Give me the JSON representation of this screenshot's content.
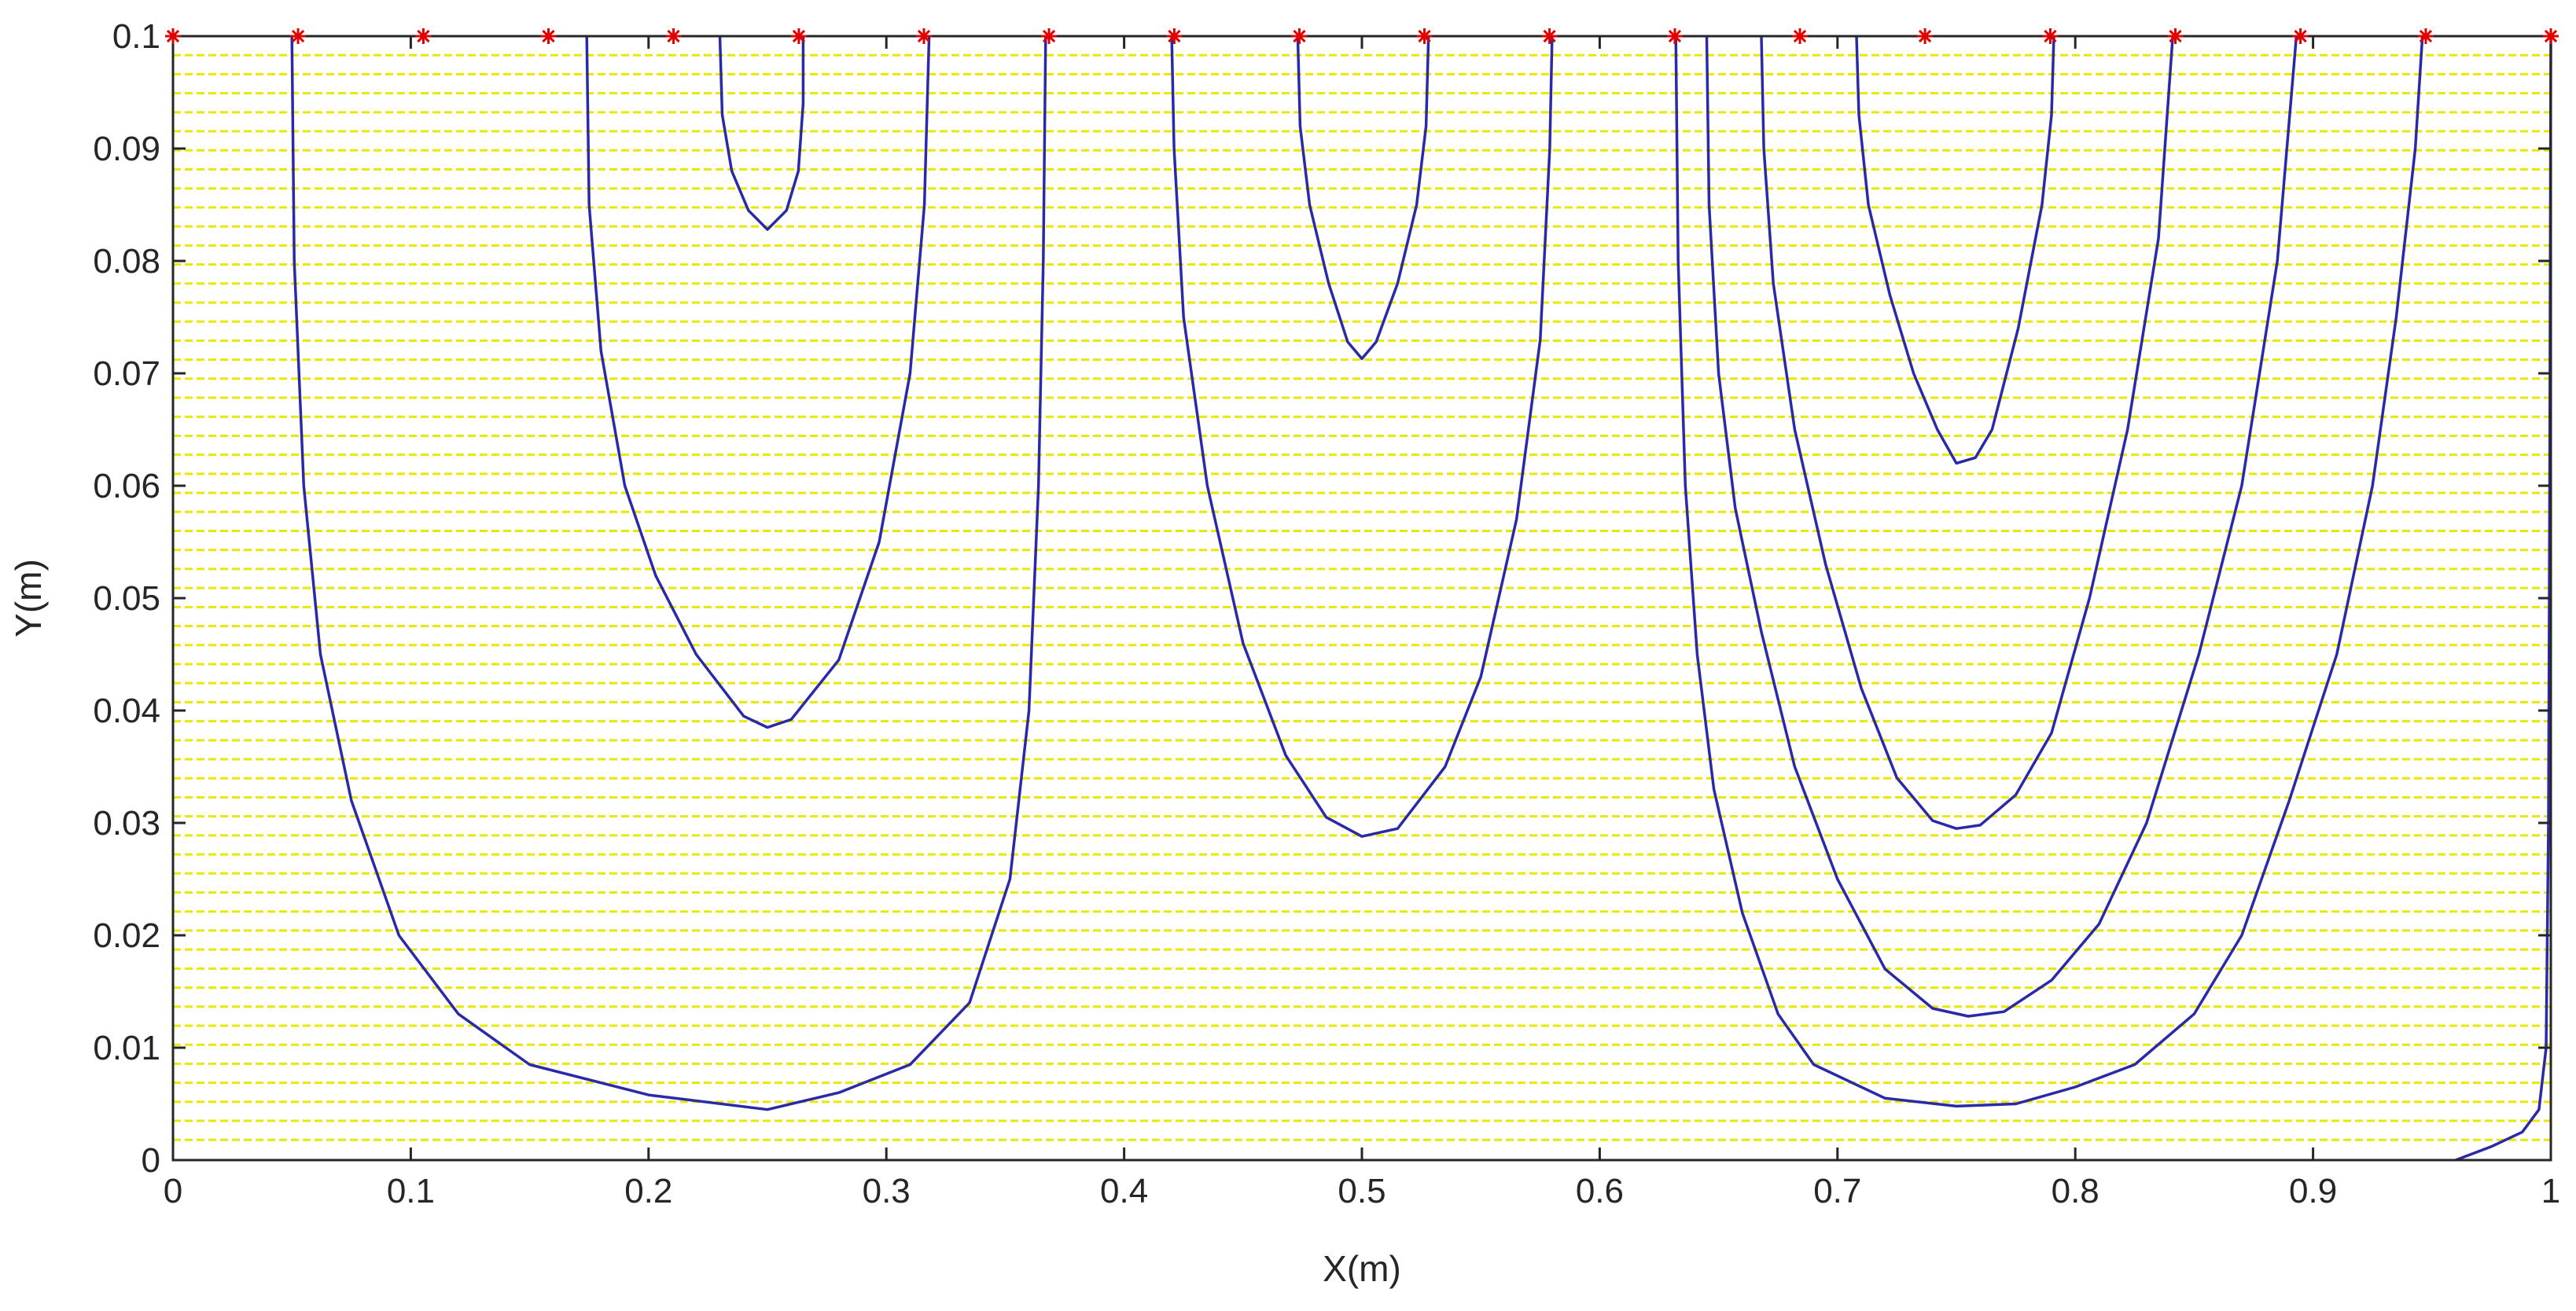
{
  "chart_data": {
    "type": "line",
    "xlabel": "X(m)",
    "ylabel": "Y(m)",
    "xlim": [
      0,
      1
    ],
    "ylim": [
      0,
      0.1
    ],
    "x_ticks": [
      0,
      0.1,
      0.2,
      0.3,
      0.4,
      0.5,
      0.6,
      0.7,
      0.8,
      0.9,
      1
    ],
    "x_tick_labels": [
      "0",
      "0.1",
      "0.2",
      "0.3",
      "0.4",
      "0.5",
      "0.6",
      "0.7",
      "0.8",
      "0.9",
      "1"
    ],
    "y_ticks": [
      0,
      0.01,
      0.02,
      0.03,
      0.04,
      0.05,
      0.06,
      0.07,
      0.08,
      0.09,
      0.1
    ],
    "y_tick_labels": [
      "0",
      "0.01",
      "0.02",
      "0.03",
      "0.04",
      "0.05",
      "0.06",
      "0.07",
      "0.08",
      "0.09",
      "0.1"
    ],
    "grid": false,
    "colors": {
      "curves": "#2a2aa8",
      "dashed_lines": "#e8e800",
      "markers": "#e00000",
      "axes": "#262626"
    },
    "horizontal_dashed_lines": {
      "y_start": 0.0018,
      "y_end": 0.1,
      "count": 59
    },
    "markers": {
      "y": 0.1,
      "symbol": "*",
      "x": [
        0,
        0.0526,
        0.1053,
        0.1579,
        0.2105,
        0.2632,
        0.3158,
        0.3684,
        0.4211,
        0.4737,
        0.5263,
        0.5789,
        0.6316,
        0.6842,
        0.7368,
        0.7895,
        0.8421,
        0.8947,
        0.9474,
        1.0
      ]
    },
    "curves": [
      {
        "points": [
          [
            0.05,
            0.1
          ],
          [
            0.051,
            0.08
          ],
          [
            0.055,
            0.06
          ],
          [
            0.062,
            0.045
          ],
          [
            0.075,
            0.032
          ],
          [
            0.095,
            0.02
          ],
          [
            0.12,
            0.013
          ],
          [
            0.15,
            0.0085
          ],
          [
            0.2,
            0.0058
          ],
          [
            0.25,
            0.0045
          ],
          [
            0.28,
            0.006
          ],
          [
            0.31,
            0.0085
          ],
          [
            0.335,
            0.014
          ],
          [
            0.352,
            0.025
          ],
          [
            0.36,
            0.04
          ],
          [
            0.364,
            0.06
          ],
          [
            0.366,
            0.08
          ],
          [
            0.367,
            0.1
          ]
        ]
      },
      {
        "points": [
          [
            0.174,
            0.1
          ],
          [
            0.175,
            0.085
          ],
          [
            0.18,
            0.072
          ],
          [
            0.19,
            0.06
          ],
          [
            0.203,
            0.052
          ],
          [
            0.22,
            0.045
          ],
          [
            0.24,
            0.0395
          ],
          [
            0.25,
            0.0385
          ],
          [
            0.26,
            0.0392
          ],
          [
            0.28,
            0.0445
          ],
          [
            0.297,
            0.055
          ],
          [
            0.31,
            0.07
          ],
          [
            0.316,
            0.085
          ],
          [
            0.318,
            0.1
          ]
        ]
      },
      {
        "points": [
          [
            0.23,
            0.1
          ],
          [
            0.231,
            0.093
          ],
          [
            0.235,
            0.088
          ],
          [
            0.242,
            0.0845
          ],
          [
            0.25,
            0.0828
          ],
          [
            0.258,
            0.0845
          ],
          [
            0.263,
            0.088
          ],
          [
            0.265,
            0.094
          ],
          [
            0.265,
            0.1
          ]
        ]
      },
      {
        "points": [
          [
            0.42,
            0.1
          ],
          [
            0.421,
            0.09
          ],
          [
            0.425,
            0.075
          ],
          [
            0.435,
            0.06
          ],
          [
            0.45,
            0.046
          ],
          [
            0.468,
            0.036
          ],
          [
            0.485,
            0.0305
          ],
          [
            0.5,
            0.0288
          ],
          [
            0.515,
            0.0295
          ],
          [
            0.535,
            0.035
          ],
          [
            0.55,
            0.043
          ],
          [
            0.565,
            0.057
          ],
          [
            0.575,
            0.073
          ],
          [
            0.579,
            0.09
          ],
          [
            0.58,
            0.1
          ]
        ]
      },
      {
        "points": [
          [
            0.473,
            0.1
          ],
          [
            0.474,
            0.092
          ],
          [
            0.478,
            0.085
          ],
          [
            0.486,
            0.078
          ],
          [
            0.494,
            0.0728
          ],
          [
            0.5,
            0.0713
          ],
          [
            0.506,
            0.0728
          ],
          [
            0.515,
            0.078
          ],
          [
            0.523,
            0.085
          ],
          [
            0.527,
            0.092
          ],
          [
            0.528,
            0.1
          ]
        ]
      },
      {
        "points": [
          [
            0.632,
            0.1
          ],
          [
            0.633,
            0.08
          ],
          [
            0.636,
            0.06
          ],
          [
            0.641,
            0.045
          ],
          [
            0.648,
            0.033
          ],
          [
            0.66,
            0.022
          ],
          [
            0.675,
            0.013
          ],
          [
            0.69,
            0.0085
          ],
          [
            0.72,
            0.0055
          ],
          [
            0.75,
            0.0048
          ],
          [
            0.775,
            0.005
          ],
          [
            0.8,
            0.0065
          ],
          [
            0.825,
            0.0085
          ],
          [
            0.85,
            0.013
          ],
          [
            0.87,
            0.02
          ],
          [
            0.89,
            0.032
          ],
          [
            0.91,
            0.045
          ],
          [
            0.925,
            0.06
          ],
          [
            0.935,
            0.075
          ],
          [
            0.943,
            0.09
          ],
          [
            0.946,
            0.1
          ]
        ]
      },
      {
        "points": [
          [
            0.645,
            0.1
          ],
          [
            0.646,
            0.085
          ],
          [
            0.65,
            0.07
          ],
          [
            0.657,
            0.058
          ],
          [
            0.668,
            0.047
          ],
          [
            0.682,
            0.035
          ],
          [
            0.7,
            0.025
          ],
          [
            0.72,
            0.017
          ],
          [
            0.74,
            0.0135
          ],
          [
            0.755,
            0.0128
          ],
          [
            0.77,
            0.0132
          ],
          [
            0.79,
            0.016
          ],
          [
            0.81,
            0.021
          ],
          [
            0.83,
            0.03
          ],
          [
            0.852,
            0.045
          ],
          [
            0.87,
            0.06
          ],
          [
            0.885,
            0.08
          ],
          [
            0.893,
            0.1
          ]
        ]
      },
      {
        "points": [
          [
            0.668,
            0.1
          ],
          [
            0.669,
            0.09
          ],
          [
            0.673,
            0.078
          ],
          [
            0.682,
            0.065
          ],
          [
            0.695,
            0.053
          ],
          [
            0.71,
            0.042
          ],
          [
            0.725,
            0.034
          ],
          [
            0.74,
            0.0302
          ],
          [
            0.75,
            0.0295
          ],
          [
            0.76,
            0.0298
          ],
          [
            0.775,
            0.0325
          ],
          [
            0.79,
            0.038
          ],
          [
            0.806,
            0.05
          ],
          [
            0.822,
            0.065
          ],
          [
            0.835,
            0.082
          ],
          [
            0.841,
            0.1
          ]
        ]
      },
      {
        "points": [
          [
            0.708,
            0.1
          ],
          [
            0.709,
            0.093
          ],
          [
            0.713,
            0.085
          ],
          [
            0.722,
            0.077
          ],
          [
            0.732,
            0.07
          ],
          [
            0.742,
            0.065
          ],
          [
            0.75,
            0.062
          ],
          [
            0.758,
            0.0625
          ],
          [
            0.765,
            0.065
          ],
          [
            0.776,
            0.074
          ],
          [
            0.786,
            0.085
          ],
          [
            0.79,
            0.093
          ],
          [
            0.791,
            0.1
          ]
        ]
      },
      {
        "points": [
          [
            0.96,
            0
          ],
          [
            0.975,
            0.0012
          ],
          [
            0.988,
            0.0025
          ],
          [
            0.995,
            0.0045
          ],
          [
            0.998,
            0.01
          ],
          [
            0.999,
            0.03
          ],
          [
            0.9995,
            0.06
          ],
          [
            1.0,
            0.1
          ]
        ]
      }
    ]
  }
}
